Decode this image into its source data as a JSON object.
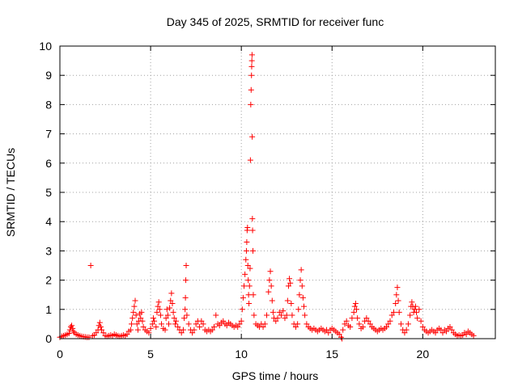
{
  "chart_data": {
    "type": "scatter",
    "title": "Day 345 of 2025, SRMTID for receiver func",
    "xlabel": "GPS time / hours",
    "ylabel": "SRMTID / TECUs",
    "xlim": [
      0,
      24
    ],
    "ylim": [
      0,
      10
    ],
    "xticks": [
      0,
      5,
      10,
      15,
      20
    ],
    "yticks": [
      0,
      1,
      2,
      3,
      4,
      5,
      6,
      7,
      8,
      9,
      10
    ],
    "grid": true,
    "marker": "plus",
    "color": "#ff0000",
    "series": [
      {
        "points": [
          [
            0.0,
            0.05
          ],
          [
            0.1,
            0.08
          ],
          [
            0.2,
            0.1
          ],
          [
            0.3,
            0.12
          ],
          [
            0.4,
            0.15
          ],
          [
            0.5,
            0.18
          ],
          [
            0.55,
            0.3
          ],
          [
            0.6,
            0.4
          ],
          [
            0.65,
            0.45
          ],
          [
            0.7,
            0.35
          ],
          [
            0.75,
            0.25
          ],
          [
            0.8,
            0.2
          ],
          [
            0.9,
            0.15
          ],
          [
            1.0,
            0.12
          ],
          [
            1.1,
            0.1
          ],
          [
            1.2,
            0.08
          ],
          [
            1.3,
            0.07
          ],
          [
            1.4,
            0.06
          ],
          [
            1.5,
            0.05
          ],
          [
            1.6,
            0.05
          ],
          [
            1.7,
            2.5
          ],
          [
            1.8,
            0.1
          ],
          [
            1.9,
            0.12
          ],
          [
            2.0,
            0.2
          ],
          [
            2.1,
            0.3
          ],
          [
            2.15,
            0.45
          ],
          [
            2.2,
            0.55
          ],
          [
            2.25,
            0.4
          ],
          [
            2.3,
            0.3
          ],
          [
            2.4,
            0.2
          ],
          [
            2.5,
            0.1
          ],
          [
            2.6,
            0.08
          ],
          [
            2.7,
            0.1
          ],
          [
            2.8,
            0.12
          ],
          [
            2.9,
            0.1
          ],
          [
            3.0,
            0.15
          ],
          [
            3.1,
            0.12
          ],
          [
            3.2,
            0.1
          ],
          [
            3.3,
            0.08
          ],
          [
            3.4,
            0.1
          ],
          [
            3.5,
            0.12
          ],
          [
            3.6,
            0.1
          ],
          [
            3.7,
            0.15
          ],
          [
            3.8,
            0.25
          ],
          [
            3.9,
            0.3
          ],
          [
            3.95,
            0.5
          ],
          [
            4.0,
            0.7
          ],
          [
            4.05,
            0.9
          ],
          [
            4.1,
            1.1
          ],
          [
            4.15,
            1.3
          ],
          [
            4.2,
            0.8
          ],
          [
            4.25,
            0.5
          ],
          [
            4.3,
            0.3
          ],
          [
            4.35,
            0.6
          ],
          [
            4.4,
            0.85
          ],
          [
            4.45,
            0.7
          ],
          [
            4.5,
            0.9
          ],
          [
            4.55,
            0.6
          ],
          [
            4.6,
            0.4
          ],
          [
            4.7,
            0.3
          ],
          [
            4.8,
            0.25
          ],
          [
            4.9,
            0.2
          ],
          [
            5.0,
            0.35
          ],
          [
            5.1,
            0.5
          ],
          [
            5.15,
            0.7
          ],
          [
            5.2,
            0.6
          ],
          [
            5.3,
            0.4
          ],
          [
            5.35,
            0.9
          ],
          [
            5.4,
            1.1
          ],
          [
            5.45,
            1.25
          ],
          [
            5.5,
            1.0
          ],
          [
            5.55,
            0.8
          ],
          [
            5.6,
            0.5
          ],
          [
            5.7,
            0.35
          ],
          [
            5.8,
            0.3
          ],
          [
            5.85,
            0.7
          ],
          [
            5.9,
            1.0
          ],
          [
            5.95,
            0.8
          ],
          [
            6.0,
            0.5
          ],
          [
            6.05,
            1.05
          ],
          [
            6.1,
            1.3
          ],
          [
            6.15,
            1.55
          ],
          [
            6.2,
            1.2
          ],
          [
            6.25,
            0.9
          ],
          [
            6.3,
            0.7
          ],
          [
            6.35,
            0.5
          ],
          [
            6.4,
            0.6
          ],
          [
            6.5,
            0.4
          ],
          [
            6.6,
            0.3
          ],
          [
            6.7,
            0.2
          ],
          [
            6.8,
            0.3
          ],
          [
            6.85,
            0.7
          ],
          [
            6.9,
            1.0
          ],
          [
            6.92,
            1.4
          ],
          [
            6.94,
            2.0
          ],
          [
            6.96,
            2.5
          ],
          [
            7.0,
            0.8
          ],
          [
            7.1,
            0.5
          ],
          [
            7.2,
            0.3
          ],
          [
            7.3,
            0.2
          ],
          [
            7.4,
            0.3
          ],
          [
            7.5,
            0.5
          ],
          [
            7.6,
            0.6
          ],
          [
            7.7,
            0.4
          ],
          [
            7.8,
            0.6
          ],
          [
            7.9,
            0.5
          ],
          [
            8.0,
            0.3
          ],
          [
            8.1,
            0.25
          ],
          [
            8.2,
            0.3
          ],
          [
            8.3,
            0.25
          ],
          [
            8.4,
            0.3
          ],
          [
            8.5,
            0.4
          ],
          [
            8.6,
            0.8
          ],
          [
            8.7,
            0.5
          ],
          [
            8.8,
            0.45
          ],
          [
            8.9,
            0.55
          ],
          [
            9.0,
            0.6
          ],
          [
            9.1,
            0.5
          ],
          [
            9.2,
            0.45
          ],
          [
            9.3,
            0.55
          ],
          [
            9.4,
            0.5
          ],
          [
            9.5,
            0.45
          ],
          [
            9.6,
            0.4
          ],
          [
            9.7,
            0.45
          ],
          [
            9.8,
            0.4
          ],
          [
            9.9,
            0.5
          ],
          [
            10.0,
            0.6
          ],
          [
            10.05,
            1.0
          ],
          [
            10.1,
            1.4
          ],
          [
            10.15,
            1.8
          ],
          [
            10.2,
            2.2
          ],
          [
            10.25,
            2.7
          ],
          [
            10.28,
            3.0
          ],
          [
            10.3,
            3.3
          ],
          [
            10.32,
            3.7
          ],
          [
            10.34,
            3.8
          ],
          [
            10.36,
            2.5
          ],
          [
            10.38,
            2.0
          ],
          [
            10.4,
            1.5
          ],
          [
            10.42,
            1.2
          ],
          [
            10.45,
            1.8
          ],
          [
            10.48,
            2.4
          ],
          [
            10.5,
            6.1
          ],
          [
            10.52,
            8.0
          ],
          [
            10.54,
            8.5
          ],
          [
            10.56,
            9.0
          ],
          [
            10.57,
            9.3
          ],
          [
            10.58,
            9.5
          ],
          [
            10.59,
            9.7
          ],
          [
            10.6,
            6.9
          ],
          [
            10.61,
            4.1
          ],
          [
            10.62,
            3.7
          ],
          [
            10.64,
            3.0
          ],
          [
            10.66,
            1.5
          ],
          [
            10.7,
            0.8
          ],
          [
            10.8,
            0.5
          ],
          [
            10.9,
            0.45
          ],
          [
            11.0,
            0.4
          ],
          [
            11.1,
            0.5
          ],
          [
            11.2,
            0.4
          ],
          [
            11.3,
            0.5
          ],
          [
            11.4,
            0.8
          ],
          [
            11.5,
            1.6
          ],
          [
            11.55,
            2.0
          ],
          [
            11.6,
            2.3
          ],
          [
            11.65,
            1.8
          ],
          [
            11.7,
            1.3
          ],
          [
            11.75,
            0.9
          ],
          [
            11.8,
            0.7
          ],
          [
            11.9,
            0.6
          ],
          [
            12.0,
            0.7
          ],
          [
            12.1,
            0.9
          ],
          [
            12.2,
            0.8
          ],
          [
            12.3,
            0.95
          ],
          [
            12.4,
            0.7
          ],
          [
            12.5,
            0.8
          ],
          [
            12.55,
            1.3
          ],
          [
            12.6,
            1.8
          ],
          [
            12.65,
            2.05
          ],
          [
            12.7,
            1.9
          ],
          [
            12.75,
            1.2
          ],
          [
            12.8,
            0.8
          ],
          [
            12.9,
            0.5
          ],
          [
            13.0,
            0.4
          ],
          [
            13.1,
            0.5
          ],
          [
            13.15,
            1.0
          ],
          [
            13.2,
            1.5
          ],
          [
            13.25,
            2.0
          ],
          [
            13.3,
            2.35
          ],
          [
            13.35,
            1.8
          ],
          [
            13.4,
            1.4
          ],
          [
            13.45,
            1.1
          ],
          [
            13.5,
            0.8
          ],
          [
            13.6,
            0.5
          ],
          [
            13.7,
            0.4
          ],
          [
            13.8,
            0.35
          ],
          [
            13.9,
            0.3
          ],
          [
            14.0,
            0.35
          ],
          [
            14.1,
            0.3
          ],
          [
            14.2,
            0.25
          ],
          [
            14.3,
            0.3
          ],
          [
            14.4,
            0.35
          ],
          [
            14.5,
            0.3
          ],
          [
            14.6,
            0.25
          ],
          [
            14.7,
            0.3
          ],
          [
            14.8,
            0.2
          ],
          [
            14.9,
            0.3
          ],
          [
            15.0,
            0.35
          ],
          [
            15.1,
            0.3
          ],
          [
            15.2,
            0.25
          ],
          [
            15.3,
            0.2
          ],
          [
            15.4,
            0.15
          ],
          [
            15.5,
            0.05
          ],
          [
            15.55,
            0.0
          ],
          [
            15.6,
            0.3
          ],
          [
            15.7,
            0.5
          ],
          [
            15.8,
            0.6
          ],
          [
            15.9,
            0.45
          ],
          [
            16.0,
            0.4
          ],
          [
            16.1,
            0.7
          ],
          [
            16.2,
            0.9
          ],
          [
            16.25,
            1.1
          ],
          [
            16.3,
            1.2
          ],
          [
            16.35,
            1.0
          ],
          [
            16.4,
            0.7
          ],
          [
            16.5,
            0.5
          ],
          [
            16.6,
            0.35
          ],
          [
            16.7,
            0.4
          ],
          [
            16.8,
            0.6
          ],
          [
            16.9,
            0.7
          ],
          [
            17.0,
            0.6
          ],
          [
            17.1,
            0.5
          ],
          [
            17.2,
            0.4
          ],
          [
            17.3,
            0.35
          ],
          [
            17.4,
            0.3
          ],
          [
            17.5,
            0.25
          ],
          [
            17.6,
            0.3
          ],
          [
            17.7,
            0.35
          ],
          [
            17.8,
            0.3
          ],
          [
            17.9,
            0.35
          ],
          [
            18.0,
            0.4
          ],
          [
            18.1,
            0.5
          ],
          [
            18.2,
            0.6
          ],
          [
            18.3,
            0.8
          ],
          [
            18.4,
            0.9
          ],
          [
            18.5,
            1.2
          ],
          [
            18.55,
            1.5
          ],
          [
            18.6,
            1.75
          ],
          [
            18.65,
            1.3
          ],
          [
            18.7,
            0.9
          ],
          [
            18.8,
            0.5
          ],
          [
            18.9,
            0.3
          ],
          [
            19.0,
            0.2
          ],
          [
            19.1,
            0.3
          ],
          [
            19.2,
            0.5
          ],
          [
            19.3,
            0.8
          ],
          [
            19.35,
            1.1
          ],
          [
            19.4,
            1.25
          ],
          [
            19.45,
            1.1
          ],
          [
            19.5,
            0.9
          ],
          [
            19.55,
            1.0
          ],
          [
            19.6,
            1.1
          ],
          [
            19.65,
            0.9
          ],
          [
            19.7,
            0.7
          ],
          [
            19.8,
            1.0
          ],
          [
            19.9,
            0.6
          ],
          [
            20.0,
            0.4
          ],
          [
            20.1,
            0.3
          ],
          [
            20.2,
            0.25
          ],
          [
            20.3,
            0.2
          ],
          [
            20.4,
            0.25
          ],
          [
            20.5,
            0.3
          ],
          [
            20.6,
            0.25
          ],
          [
            20.7,
            0.2
          ],
          [
            20.8,
            0.3
          ],
          [
            20.9,
            0.35
          ],
          [
            21.0,
            0.3
          ],
          [
            21.1,
            0.2
          ],
          [
            21.2,
            0.3
          ],
          [
            21.3,
            0.25
          ],
          [
            21.4,
            0.35
          ],
          [
            21.5,
            0.4
          ],
          [
            21.6,
            0.3
          ],
          [
            21.7,
            0.2
          ],
          [
            21.8,
            0.15
          ],
          [
            21.9,
            0.1
          ],
          [
            22.0,
            0.12
          ],
          [
            22.1,
            0.1
          ],
          [
            22.2,
            0.12
          ],
          [
            22.3,
            0.2
          ],
          [
            22.4,
            0.15
          ],
          [
            22.5,
            0.25
          ],
          [
            22.6,
            0.2
          ],
          [
            22.7,
            0.15
          ],
          [
            22.8,
            0.1
          ]
        ]
      }
    ]
  }
}
